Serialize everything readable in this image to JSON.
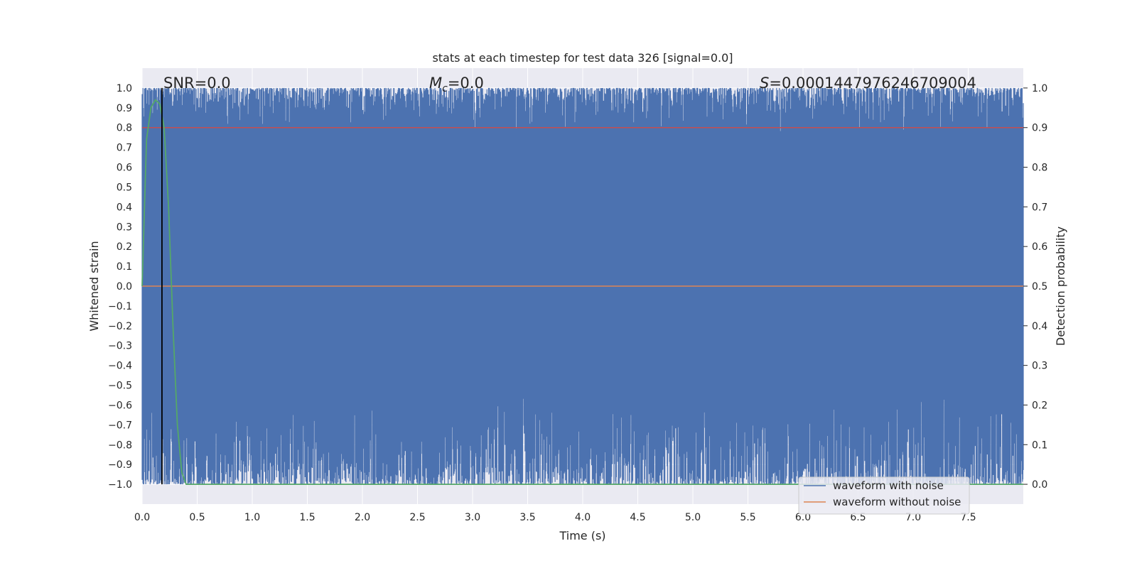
{
  "chart_data": {
    "type": "line",
    "title": "stats at each timestep for test data 326 [signal=0.0]",
    "xlabel": "Time (s)",
    "ylabel": "Whitened strain",
    "y2label": "Detection probability",
    "xlim": [
      0.0,
      8.0
    ],
    "ylim": [
      -1.1,
      1.1
    ],
    "y2lim": [
      -0.05,
      1.05
    ],
    "x_ticks": [
      "0.0",
      "0.5",
      "1.0",
      "1.5",
      "2.0",
      "2.5",
      "3.0",
      "3.5",
      "4.0",
      "4.5",
      "5.0",
      "5.5",
      "6.0",
      "6.5",
      "7.0",
      "7.5"
    ],
    "y_ticks": [
      "1.0",
      "0.9",
      "0.8",
      "0.7",
      "0.6",
      "0.5",
      "0.4",
      "0.3",
      "0.2",
      "0.1",
      "0.0",
      "−0.1",
      "−0.2",
      "−0.3",
      "−0.4",
      "−0.5",
      "−0.6",
      "−0.7",
      "−0.8",
      "−0.9",
      "−1.0"
    ],
    "y2_ticks": [
      "1.0",
      "0.9",
      "0.8",
      "0.7",
      "0.6",
      "0.5",
      "0.4",
      "0.3",
      "0.2",
      "0.1",
      "0.0"
    ],
    "annotations": {
      "snr": "SNR=0.0",
      "mc_symbol": "M",
      "mc_sub": "c",
      "mc_value": "=0.0",
      "s_symbol": "S",
      "s_value": "=0.0001447976246709004"
    },
    "grid": true,
    "legend_position": "lower right",
    "series": [
      {
        "name": "waveform with noise",
        "color": "#4c72b0",
        "kind": "whitened noise filling approx -1.0 to 1.0",
        "x_range": [
          0.0,
          8.0
        ],
        "y_range": [
          -1.0,
          1.0
        ]
      },
      {
        "name": "waveform without noise",
        "color": "#dd8452",
        "x": [
          0.0,
          8.0
        ],
        "y": [
          0.0,
          0.0
        ]
      },
      {
        "color": "#55a868",
        "axis": "right",
        "x": [
          0.0,
          0.04,
          0.08,
          0.12,
          0.16,
          0.2,
          0.24,
          0.28,
          0.32,
          0.36,
          0.4,
          8.0
        ],
        "y": [
          0.5,
          0.87,
          0.95,
          0.97,
          0.96,
          0.9,
          0.7,
          0.4,
          0.15,
          0.03,
          0.0,
          0.0
        ]
      },
      {
        "color": "#c44e52",
        "axis": "right",
        "x": [
          0.0,
          8.0
        ],
        "y": [
          0.9,
          0.9
        ]
      }
    ],
    "markers": [
      {
        "color": "#000000",
        "x": 0.18
      }
    ]
  },
  "legend": {
    "noise_label": "waveform with noise",
    "clean_label": "waveform without noise"
  }
}
